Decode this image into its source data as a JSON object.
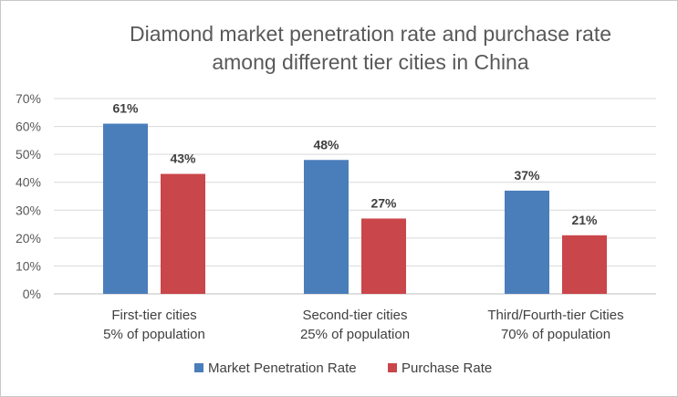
{
  "chart_data": {
    "type": "bar",
    "title": [
      "Diamond market penetration rate and purchase rate",
      "among different tier cities in China"
    ],
    "categories": [
      [
        "First-tier cities",
        "5% of population"
      ],
      [
        "Second-tier cities",
        "25% of population"
      ],
      [
        "Third/Fourth-tier Cities",
        "70% of population"
      ]
    ],
    "series": [
      {
        "name": "Market Penetration Rate",
        "color": "#4a7ebb",
        "values": [
          61,
          48,
          37
        ],
        "labels": [
          "61%",
          "48%",
          "37%"
        ]
      },
      {
        "name": "Purchase Rate",
        "color": "#c9464a",
        "values": [
          43,
          27,
          21
        ],
        "labels": [
          "43%",
          "27%",
          "21%"
        ]
      }
    ],
    "ylim": [
      0,
      70
    ],
    "yticks": [
      0,
      10,
      20,
      30,
      40,
      50,
      60,
      70
    ],
    "ytick_labels": [
      "0%",
      "10%",
      "20%",
      "30%",
      "40%",
      "50%",
      "60%",
      "70%"
    ],
    "xlabel": "",
    "ylabel": "",
    "grid": true,
    "legend_position": "bottom"
  }
}
